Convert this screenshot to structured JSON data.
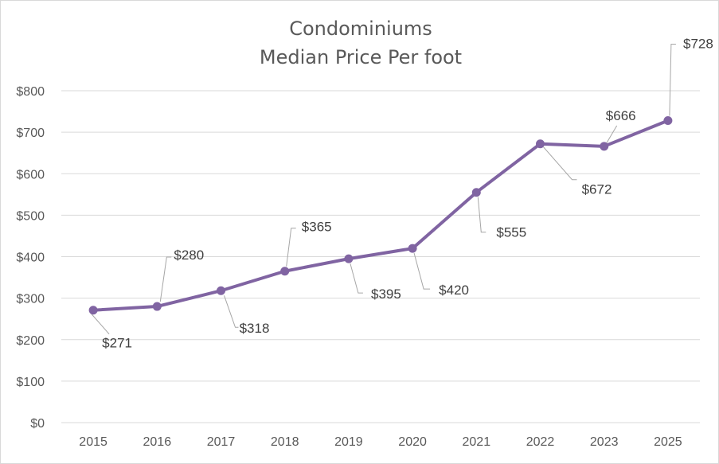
{
  "chart_data": {
    "type": "line",
    "title": [
      "Condominiums",
      "Median Price Per foot"
    ],
    "categories": [
      "2015",
      "2016",
      "2017",
      "2018",
      "2019",
      "2020",
      "2021",
      "2022",
      "2023",
      "2025"
    ],
    "series": [
      {
        "values": [
          271,
          280,
          318,
          365,
          395,
          420,
          555,
          672,
          666,
          728
        ],
        "labels": [
          "$271",
          "$280",
          "$318",
          "$365",
          "$395",
          "$420",
          "$555",
          "$672",
          "$666",
          "$728"
        ],
        "color": "#8064a2"
      }
    ],
    "ylim": [
      0,
      800
    ],
    "yticks": [
      0,
      100,
      200,
      300,
      400,
      500,
      600,
      700,
      800
    ],
    "ytick_labels": [
      "$0",
      "$100",
      "$200",
      "$300",
      "$400",
      "$500",
      "$600",
      "$700",
      "$800"
    ],
    "grid": true,
    "legend": "none"
  }
}
